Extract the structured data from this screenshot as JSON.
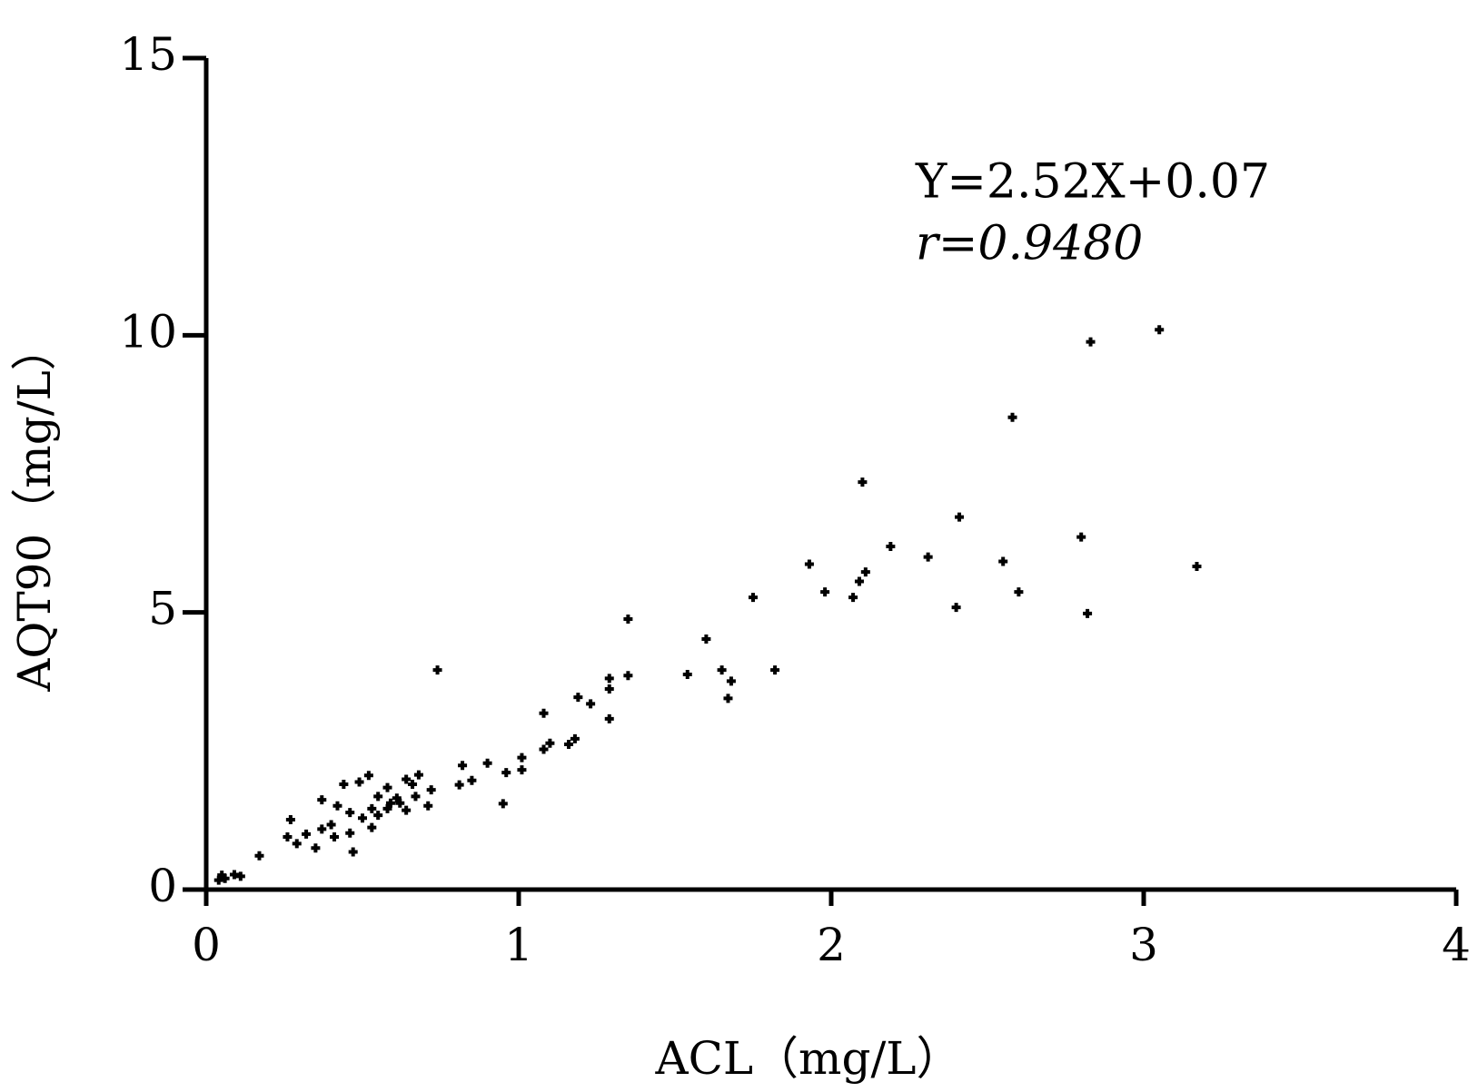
{
  "chart_data": {
    "type": "scatter",
    "xlabel": "ACL（mg/L）",
    "ylabel": "AQT90（mg/L）",
    "annotations": [
      "Y=2.52X+0.07",
      "r=0.9480"
    ],
    "color": "#000000",
    "x": [
      3.05,
      2.83,
      2.58,
      2.1,
      2.41,
      2.8,
      2.19,
      2.31,
      2.55,
      1.93,
      3.17,
      2.11,
      2.09,
      1.98,
      2.6,
      1.75,
      2.07,
      2.4,
      2.82,
      1.35,
      1.6,
      0.74,
      1.82,
      1.65,
      1.54,
      1.35,
      1.68,
      1.29,
      1.29,
      1.19,
      1.23,
      1.67,
      1.08,
      1.29,
      1.18,
      1.1,
      1.16,
      1.08,
      1.01,
      1.01,
      0.9,
      0.96,
      0.82,
      0.85,
      0.81,
      0.95,
      0.68,
      0.72,
      0.64,
      0.61,
      0.67,
      0.52,
      0.49,
      0.44,
      0.58,
      0.55,
      0.53,
      0.58,
      0.37,
      0.42,
      0.46,
      0.5,
      0.53,
      0.4,
      0.37,
      0.27,
      0.32,
      0.26,
      0.29,
      0.35,
      0.41,
      0.46,
      0.47,
      0.62,
      0.64,
      0.71,
      0.17,
      0.09,
      0.06,
      0.04,
      0.11,
      0.05,
      0.55,
      0.59,
      0.66
    ],
    "values": [
      10.1,
      9.88,
      8.52,
      7.35,
      6.72,
      6.36,
      6.19,
      6.0,
      5.92,
      5.87,
      5.83,
      5.73,
      5.56,
      5.37,
      5.37,
      5.27,
      5.27,
      5.09,
      4.98,
      4.88,
      4.52,
      3.96,
      3.96,
      3.96,
      3.88,
      3.86,
      3.76,
      3.81,
      3.62,
      3.47,
      3.35,
      3.45,
      3.18,
      3.08,
      2.72,
      2.64,
      2.62,
      2.53,
      2.38,
      2.16,
      2.28,
      2.11,
      2.24,
      1.97,
      1.89,
      1.55,
      2.07,
      1.8,
      1.99,
      1.65,
      1.68,
      2.06,
      1.94,
      1.9,
      1.84,
      1.68,
      1.46,
      1.46,
      1.62,
      1.51,
      1.39,
      1.29,
      1.12,
      1.17,
      1.09,
      1.26,
      1.0,
      0.95,
      0.83,
      0.75,
      0.95,
      1.02,
      0.68,
      1.56,
      1.43,
      1.51,
      0.61,
      0.27,
      0.2,
      0.17,
      0.24,
      0.26,
      1.34,
      1.56,
      1.9
    ],
    "xlim": [
      0,
      4
    ],
    "xticks": [
      0,
      1,
      2,
      3,
      4
    ],
    "ylim": [
      0,
      15
    ],
    "yticks": [
      0,
      5,
      10,
      15
    ]
  }
}
